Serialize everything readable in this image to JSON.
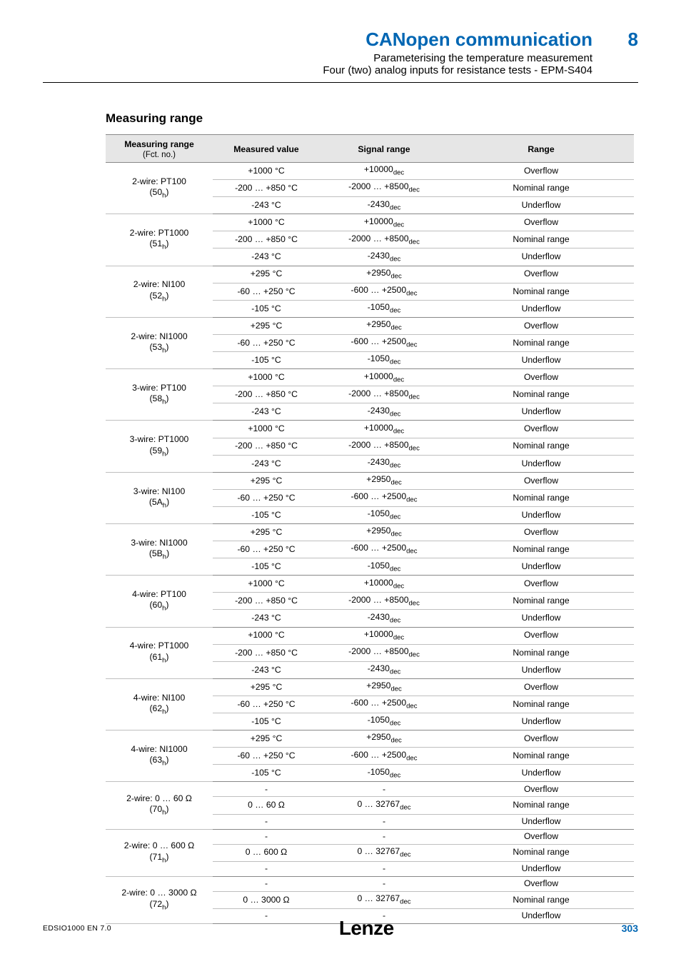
{
  "header": {
    "title": "CANopen communication",
    "page_number": "8",
    "subtitle1": "Parameterising the temperature measurement",
    "subtitle2": "Four (two) analog inputs for resistance tests - EPM-S404"
  },
  "section_title": "Measuring range",
  "table": {
    "columns": {
      "c1": "Measuring range",
      "c1sub": "(Fct. no.)",
      "c2": "Measured value",
      "c3": "Signal range",
      "c4": "Range"
    },
    "groups": [
      {
        "label": "2-wire: PT100",
        "fct": "(50",
        "fctsub": "h",
        "fctend": ")",
        "rows": [
          {
            "mv": "+1000 °C",
            "sr_pre": "+10000",
            "sr_sub": "dec",
            "rg": "Overflow"
          },
          {
            "mv": "-200 … +850 °C",
            "sr_pre": "-2000 … +8500",
            "sr_sub": "dec",
            "rg": "Nominal range"
          },
          {
            "mv": "-243 °C",
            "sr_pre": "-2430",
            "sr_sub": "dec",
            "rg": "Underflow"
          }
        ]
      },
      {
        "label": "2-wire: PT1000",
        "fct": "(51",
        "fctsub": "h",
        "fctend": ")",
        "rows": [
          {
            "mv": "+1000 °C",
            "sr_pre": "+10000",
            "sr_sub": "dec",
            "rg": "Overflow"
          },
          {
            "mv": "-200 … +850 °C",
            "sr_pre": "-2000 … +8500",
            "sr_sub": "dec",
            "rg": "Nominal range"
          },
          {
            "mv": "-243 °C",
            "sr_pre": "-2430",
            "sr_sub": "dec",
            "rg": "Underflow"
          }
        ]
      },
      {
        "label": "2-wire: NI100",
        "fct": "(52",
        "fctsub": "h",
        "fctend": ")",
        "rows": [
          {
            "mv": "+295 °C",
            "sr_pre": "+2950",
            "sr_sub": "dec",
            "rg": "Overflow"
          },
          {
            "mv": "-60 … +250 °C",
            "sr_pre": "-600 … +2500",
            "sr_sub": "dec",
            "rg": "Nominal range"
          },
          {
            "mv": "-105 °C",
            "sr_pre": "-1050",
            "sr_sub": "dec",
            "rg": "Underflow"
          }
        ]
      },
      {
        "label": "2-wire: NI1000",
        "fct": "(53",
        "fctsub": "h",
        "fctend": ")",
        "rows": [
          {
            "mv": "+295 °C",
            "sr_pre": "+2950",
            "sr_sub": "dec",
            "rg": "Overflow"
          },
          {
            "mv": "-60 … +250 °C",
            "sr_pre": "-600 … +2500",
            "sr_sub": "dec",
            "rg": "Nominal range"
          },
          {
            "mv": "-105 °C",
            "sr_pre": "-1050",
            "sr_sub": "dec",
            "rg": "Underflow"
          }
        ]
      },
      {
        "label": "3-wire: PT100",
        "fct": "(58",
        "fctsub": "h",
        "fctend": ")",
        "rows": [
          {
            "mv": "+1000 °C",
            "sr_pre": "+10000",
            "sr_sub": "dec",
            "rg": "Overflow"
          },
          {
            "mv": "-200 … +850 °C",
            "sr_pre": "-2000 … +8500",
            "sr_sub": "dec",
            "rg": "Nominal range"
          },
          {
            "mv": "-243 °C",
            "sr_pre": "-2430",
            "sr_sub": "dec",
            "rg": "Underflow"
          }
        ]
      },
      {
        "label": "3-wire: PT1000",
        "fct": "(59",
        "fctsub": "h",
        "fctend": ")",
        "rows": [
          {
            "mv": "+1000 °C",
            "sr_pre": "+10000",
            "sr_sub": "dec",
            "rg": "Overflow"
          },
          {
            "mv": "-200 … +850 °C",
            "sr_pre": "-2000 … +8500",
            "sr_sub": "dec",
            "rg": "Nominal range"
          },
          {
            "mv": "-243 °C",
            "sr_pre": "-2430",
            "sr_sub": "dec",
            "rg": "Underflow"
          }
        ]
      },
      {
        "label": "3-wire: NI100",
        "fct": "(5A",
        "fctsub": "h",
        "fctend": ")",
        "rows": [
          {
            "mv": "+295 °C",
            "sr_pre": "+2950",
            "sr_sub": "dec",
            "rg": "Overflow"
          },
          {
            "mv": "-60 … +250 °C",
            "sr_pre": "-600 … +2500",
            "sr_sub": "dec",
            "rg": "Nominal range"
          },
          {
            "mv": "-105 °C",
            "sr_pre": "-1050",
            "sr_sub": "dec",
            "rg": "Underflow"
          }
        ]
      },
      {
        "label": "3-wire: NI1000",
        "fct": "(5B",
        "fctsub": "h",
        "fctend": ")",
        "rows": [
          {
            "mv": "+295 °C",
            "sr_pre": "+2950",
            "sr_sub": "dec",
            "rg": "Overflow"
          },
          {
            "mv": "-60 … +250 °C",
            "sr_pre": "-600 … +2500",
            "sr_sub": "dec",
            "rg": "Nominal range"
          },
          {
            "mv": "-105 °C",
            "sr_pre": "-1050",
            "sr_sub": "dec",
            "rg": "Underflow"
          }
        ]
      },
      {
        "label": "4-wire: PT100",
        "fct": "(60",
        "fctsub": "h",
        "fctend": ")",
        "rows": [
          {
            "mv": "+1000 °C",
            "sr_pre": "+10000",
            "sr_sub": "dec",
            "rg": "Overflow"
          },
          {
            "mv": "-200 … +850 °C",
            "sr_pre": "-2000 … +8500",
            "sr_sub": "dec",
            "rg": "Nominal range"
          },
          {
            "mv": "-243 °C",
            "sr_pre": "-2430",
            "sr_sub": "dec",
            "rg": "Underflow"
          }
        ]
      },
      {
        "label": "4-wire: PT1000",
        "fct": "(61",
        "fctsub": "h",
        "fctend": ")",
        "rows": [
          {
            "mv": "+1000 °C",
            "sr_pre": "+10000",
            "sr_sub": "dec",
            "rg": "Overflow"
          },
          {
            "mv": "-200 … +850 °C",
            "sr_pre": "-2000 … +8500",
            "sr_sub": "dec",
            "rg": "Nominal range"
          },
          {
            "mv": "-243 °C",
            "sr_pre": "-2430",
            "sr_sub": "dec",
            "rg": "Underflow"
          }
        ]
      },
      {
        "label": "4-wire: NI100",
        "fct": "(62",
        "fctsub": "h",
        "fctend": ")",
        "rows": [
          {
            "mv": "+295 °C",
            "sr_pre": "+2950",
            "sr_sub": "dec",
            "rg": "Overflow"
          },
          {
            "mv": "-60 … +250 °C",
            "sr_pre": "-600 … +2500",
            "sr_sub": "dec",
            "rg": "Nominal range"
          },
          {
            "mv": "-105 °C",
            "sr_pre": "-1050",
            "sr_sub": "dec",
            "rg": "Underflow"
          }
        ]
      },
      {
        "label": "4-wire: NI1000",
        "fct": "(63",
        "fctsub": "h",
        "fctend": ")",
        "rows": [
          {
            "mv": "+295 °C",
            "sr_pre": "+2950",
            "sr_sub": "dec",
            "rg": "Overflow"
          },
          {
            "mv": "-60 … +250 °C",
            "sr_pre": "-600 … +2500",
            "sr_sub": "dec",
            "rg": "Nominal range"
          },
          {
            "mv": "-105 °C",
            "sr_pre": "-1050",
            "sr_sub": "dec",
            "rg": "Underflow"
          }
        ]
      },
      {
        "label": "2-wire: 0 … 60 Ω",
        "fct": "(70",
        "fctsub": "h",
        "fctend": ")",
        "rows": [
          {
            "mv": "-",
            "sr_pre": "-",
            "sr_sub": "",
            "rg": "Overflow"
          },
          {
            "mv": "0 … 60 Ω",
            "sr_pre": "0 … 32767",
            "sr_sub": "dec",
            "rg": "Nominal range"
          },
          {
            "mv": "-",
            "sr_pre": "-",
            "sr_sub": "",
            "rg": "Underflow"
          }
        ]
      },
      {
        "label": "2-wire: 0 … 600 Ω",
        "fct": "(71",
        "fctsub": "h",
        "fctend": ")",
        "rows": [
          {
            "mv": "-",
            "sr_pre": "-",
            "sr_sub": "",
            "rg": "Overflow"
          },
          {
            "mv": "0 … 600 Ω",
            "sr_pre": "0 … 32767",
            "sr_sub": "dec",
            "rg": "Nominal range"
          },
          {
            "mv": "-",
            "sr_pre": "-",
            "sr_sub": "",
            "rg": "Underflow"
          }
        ]
      },
      {
        "label": "2-wire: 0 … 3000 Ω",
        "fct": "(72",
        "fctsub": "h",
        "fctend": ")",
        "rows": [
          {
            "mv": "-",
            "sr_pre": "-",
            "sr_sub": "",
            "rg": "Overflow"
          },
          {
            "mv": "0 … 3000 Ω",
            "sr_pre": "0 … 32767",
            "sr_sub": "dec",
            "rg": "Nominal range"
          },
          {
            "mv": "-",
            "sr_pre": "-",
            "sr_sub": "",
            "rg": "Underflow"
          }
        ]
      }
    ]
  },
  "footer": {
    "code": "EDSIO1000  EN   7.0",
    "logo": "Lenze",
    "page": "303"
  }
}
